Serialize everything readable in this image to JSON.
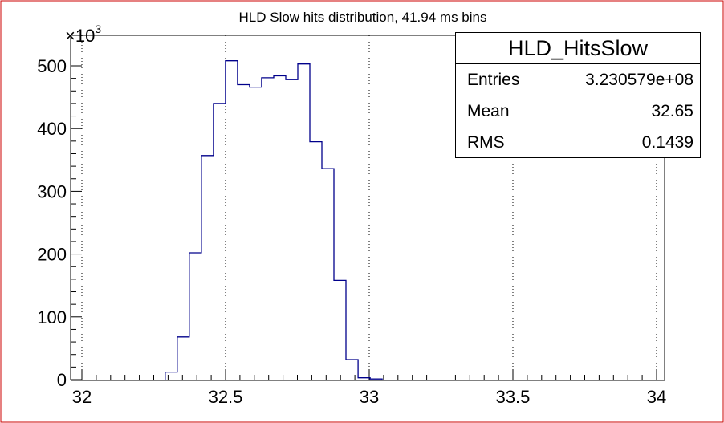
{
  "chart_data": {
    "type": "bar",
    "title": "HLD Slow hits distribution, 41.94 ms bins",
    "y_multiplier_label": "×10",
    "y_multiplier_exp": "3",
    "xlim": [
      32,
      34
    ],
    "ylim": [
      0,
      530
    ],
    "x_ticks": [
      "32",
      "32.5",
      "33",
      "33.5",
      "34"
    ],
    "y_ticks": [
      "0",
      "100",
      "200",
      "300",
      "400",
      "500"
    ],
    "grid_x": [
      32,
      32.5,
      33,
      33.5,
      34
    ],
    "bin_width": 0.04194,
    "bins_start": 32.29,
    "values": [
      12,
      68,
      202,
      357,
      440,
      508,
      470,
      466,
      481,
      484,
      478,
      503,
      379,
      336,
      158,
      32,
      3,
      1
    ],
    "line_color": "#00008b",
    "stats": {
      "name": "HLD_HitsSlow",
      "rows": [
        {
          "label": "Entries",
          "value": "3.230579e+08"
        },
        {
          "label": "Mean",
          "value": "32.65"
        },
        {
          "label": "RMS",
          "value": "0.1439"
        }
      ]
    }
  }
}
